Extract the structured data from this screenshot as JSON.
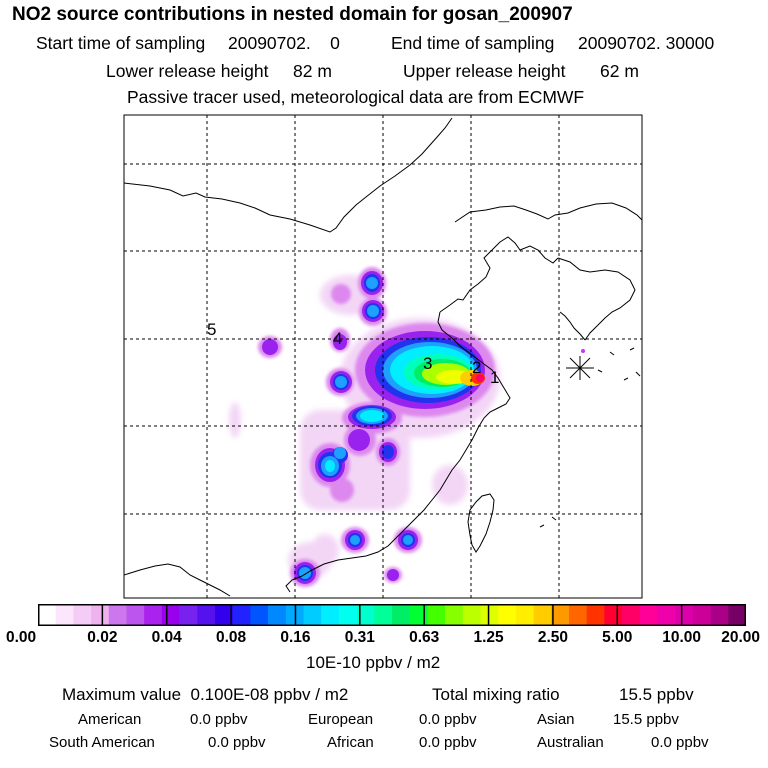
{
  "title": "NO2 source contributions in nested domain for gosan_200907",
  "header": {
    "start_label": "Start time of sampling",
    "start_value": "20090702.    0",
    "end_label": "End time of sampling",
    "end_value": "20090702. 30000",
    "lower_label": "Lower release height",
    "lower_value": "82 m",
    "upper_label": "Upper release height",
    "upper_value": "62 m",
    "note": "Passive tracer used, meteorological data are from ECMWF"
  },
  "map": {
    "source_labels": [
      "1",
      "2",
      "3",
      "4",
      "5"
    ],
    "receptor_marker": "asterisk-receptor-icon"
  },
  "colorbar": {
    "colors": [
      "#ffffff",
      "#fbe6fb",
      "#f5ccf5",
      "#eeb3ee",
      "#cc77ee",
      "#bb55ee",
      "#aa22ee",
      "#9900ee",
      "#7722ee",
      "#5511ee",
      "#3300ee",
      "#2222ff",
      "#0055ff",
      "#0088ff",
      "#00aaff",
      "#00ccff",
      "#00eeff",
      "#00ffee",
      "#00ffcc",
      "#00ff99",
      "#00ee66",
      "#00ff33",
      "#44ff00",
      "#88ff00",
      "#bbff00",
      "#ddff00",
      "#ffff00",
      "#ffee00",
      "#ffcc00",
      "#ff9900",
      "#ff6600",
      "#ff3300",
      "#ff0033",
      "#ff0066",
      "#ff0099",
      "#ee00aa",
      "#dd00aa",
      "#cc0099",
      "#aa0088",
      "#770066"
    ],
    "ticks": [
      "0.00",
      "0.02",
      "0.04",
      "0.08",
      "0.16",
      "0.31",
      "0.63",
      "1.25",
      "2.50",
      "5.00",
      "10.00",
      "20.00"
    ],
    "units": "10E-10 ppbv / m2"
  },
  "summary": {
    "max_label": "Maximum value",
    "max_value": "0.100E-08 ppbv / m2",
    "total_label": "Total mixing ratio",
    "total_value": "15.5 ppbv",
    "regions": [
      {
        "name": "American",
        "value": "0.0 ppbv"
      },
      {
        "name": "European",
        "value": "0.0 ppbv"
      },
      {
        "name": "Asian",
        "value": "15.5 ppbv"
      },
      {
        "name": "South American",
        "value": "0.0 ppbv"
      },
      {
        "name": "African",
        "value": "0.0 ppbv"
      },
      {
        "name": "Australian",
        "value": "0.0 ppbv"
      }
    ]
  }
}
